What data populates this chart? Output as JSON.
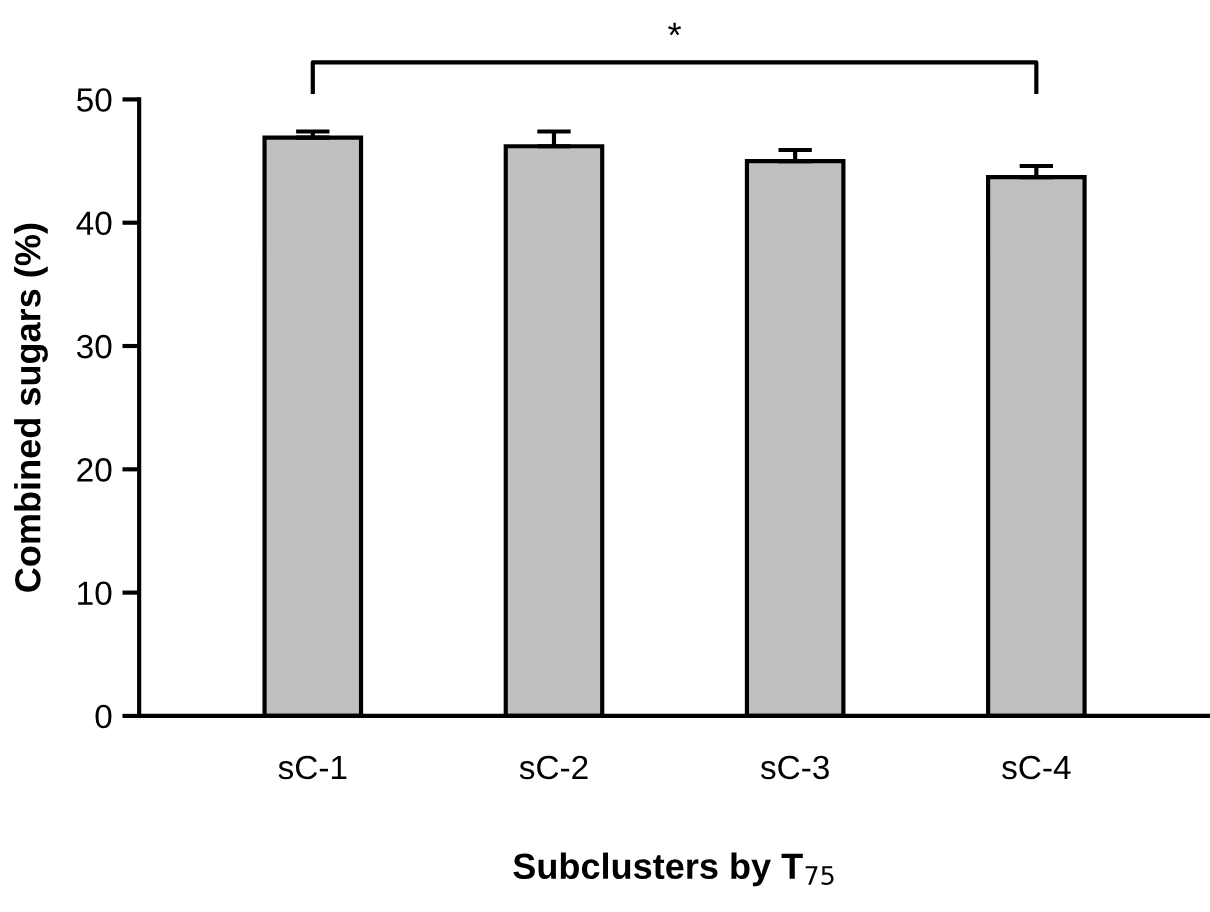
{
  "chart_data": {
    "type": "bar",
    "xlabel": "Subclusters by T$_{75}$",
    "ylabel": "Combined sugars (%)",
    "categories": [
      "sC-1",
      "sC-2",
      "sC-3",
      "sC-4"
    ],
    "values": [
      46.9,
      46.2,
      45.0,
      43.7
    ],
    "errors": [
      [
        46.9,
        47.4
      ],
      [
        46.2,
        47.4
      ],
      [
        45.0,
        45.9
      ],
      [
        43.7,
        44.6
      ]
    ],
    "color": "#c0c0c0",
    "ylim": [
      0,
      50
    ],
    "yticks": [
      0,
      10,
      20,
      30,
      40,
      50
    ],
    "grid": false,
    "annotations": [
      "*"
    ]
  }
}
